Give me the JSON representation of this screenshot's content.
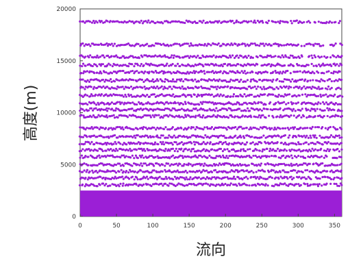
{
  "chart_data": {
    "type": "scatter",
    "xlabel": "流向",
    "ylabel": "高度(m)",
    "xlim": [
      0,
      360
    ],
    "ylim": [
      0,
      20000
    ],
    "x_ticks": [
      "0",
      "50",
      "100",
      "150",
      "200",
      "250",
      "300",
      "350"
    ],
    "y_ticks": [
      "0",
      "5000",
      "10000",
      "15000",
      "20000"
    ],
    "grid": false,
    "legend": "none",
    "point_color": "#9b1fd6",
    "series": [
      {
        "x_range": [
          0,
          360
        ],
        "x_step": 2,
        "y_levels": [
          18750,
          16550,
          15400,
          14600,
          13900,
          13100,
          12400,
          11650,
          10900,
          10300,
          9650,
          8500,
          7700,
          7050,
          6400,
          5750,
          5000,
          4350,
          3700,
          3050
        ],
        "solid_band": [
          0,
          2500
        ]
      }
    ]
  }
}
